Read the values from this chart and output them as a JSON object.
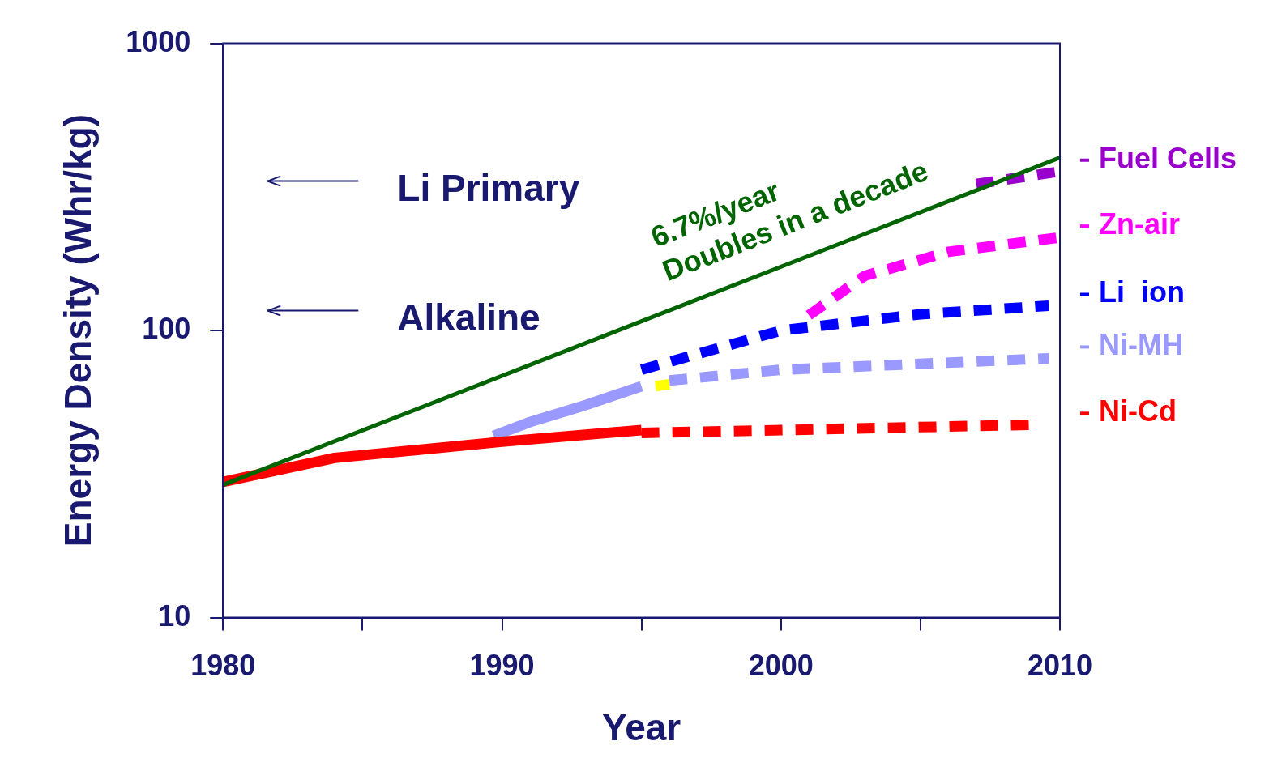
{
  "chart_data": {
    "type": "line",
    "xlabel": "Year",
    "ylabel": "Energy Density (Whr/kg)",
    "log": "y",
    "grid": false,
    "legend": "right",
    "marker": "none",
    "xlim": [
      1980,
      2010
    ],
    "xticks": [
      1980,
      {
        "value": 1985,
        "label": null
      },
      1990,
      {
        "value": 1995,
        "label": null
      },
      2000,
      {
        "value": 2005,
        "label": null
      },
      2010
    ],
    "ylim": [
      10,
      1000
    ],
    "yticks": [
      10,
      100,
      1000
    ],
    "series": [
      {
        "color": "#006400",
        "line_style": "solid",
        "x": [
          1980,
          2010
        ],
        "values": [
          29,
          400
        ]
      },
      {
        "color": "#ff0000",
        "line_style": "solid",
        "x": [
          1980,
          1984,
          1990,
          1995
        ],
        "values": [
          29.7,
          36,
          41,
          45
        ]
      },
      {
        "name": "Ni-Cd",
        "color": "#ff0000",
        "line_style": "dashed",
        "x": [
          1995,
          2000,
          2009
        ],
        "values": [
          44,
          45,
          47
        ]
      },
      {
        "color": "#9999ff",
        "line_style": "solid",
        "x": [
          1989.7,
          1991,
          1993,
          1995
        ],
        "values": [
          43,
          48,
          55,
          64
        ]
      },
      {
        "name": "Ni-MH",
        "color": "#9999ff",
        "line_style": "dashed",
        "x": [
          1996,
          2000,
          2009.6
        ],
        "values": [
          67,
          73,
          80
        ]
      },
      {
        "color": "#ffff00",
        "line_style": "solid",
        "x": [
          1995.5,
          1996
        ],
        "values": [
          64,
          65
        ]
      },
      {
        "name": "Li  ion",
        "color": "#0000ff",
        "line_style": "dashed",
        "x": [
          1995,
          2000,
          2005,
          2009.6
        ],
        "values": [
          73,
          100,
          114,
          122
        ]
      },
      {
        "name": "Zn-air",
        "color": "#ff00ff",
        "line_style": "dashed",
        "x": [
          2001,
          2003,
          2006,
          2010
        ],
        "values": [
          113,
          155,
          188,
          211
        ]
      },
      {
        "name": "Fuel Cells",
        "color": "#9900cc",
        "line_style": "dashed",
        "x": [
          2007,
          2010
        ],
        "values": [
          324,
          358
        ]
      }
    ],
    "annotations": [
      "Li Primary",
      "Alkaline",
      "6.7%/year",
      "Doubles in a decade"
    ]
  }
}
